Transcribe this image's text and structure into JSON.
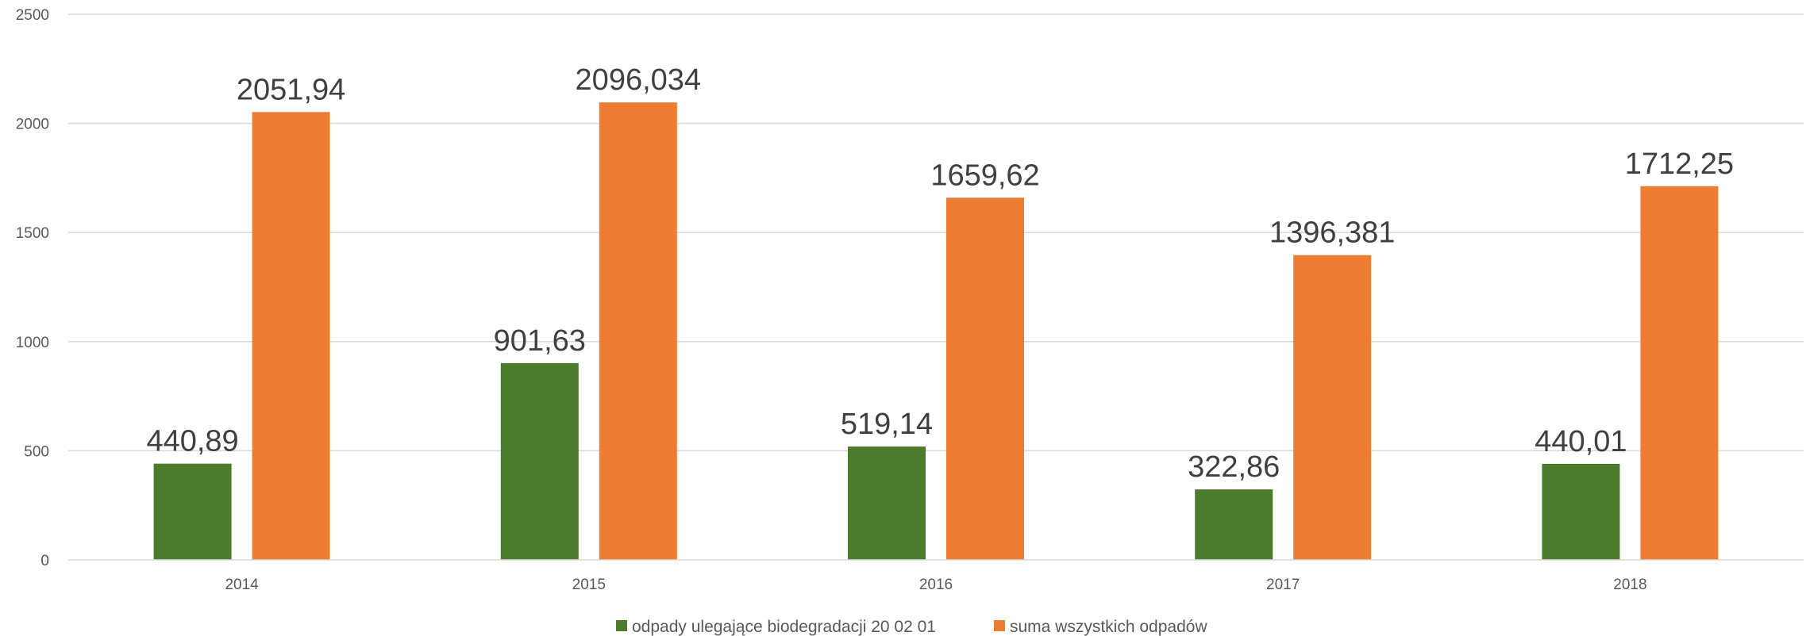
{
  "chart_data": {
    "type": "bar",
    "title": "",
    "xlabel": "",
    "ylabel": "",
    "categories": [
      "2014",
      "2015",
      "2016",
      "2017",
      "2018"
    ],
    "series": [
      {
        "name": "odpady ulegające biodegradacji  20 02 01",
        "color": "#4a7c2b",
        "values": [
          440.89,
          901.63,
          519.14,
          322.86,
          440.01
        ],
        "labels": [
          "440,89",
          "901,63",
          "519,14",
          "322,86",
          "440,01"
        ]
      },
      {
        "name": "suma wszystkich odpadów",
        "color": "#ed7d31",
        "values": [
          2051.94,
          2096.034,
          1659.62,
          1396.381,
          1712.25
        ],
        "labels": [
          "2051,94",
          "2096,034",
          "1659,62",
          "1396,381",
          "1712,25"
        ]
      }
    ],
    "ylim": [
      0,
      2500
    ],
    "yticks": [
      0,
      500,
      1000,
      1500,
      2000,
      2500
    ],
    "grid": true,
    "legend": "bottom-center"
  }
}
